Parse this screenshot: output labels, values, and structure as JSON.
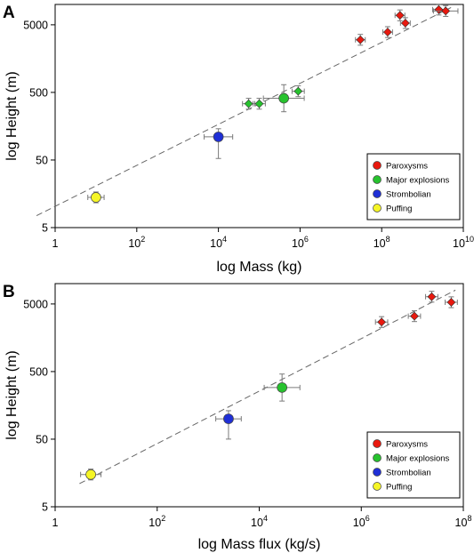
{
  "colors": {
    "paroxysms": "#e8190f",
    "major_explosions": "#27c22e",
    "strombolian": "#1f2fd6",
    "puffing": "#f5f526",
    "fit_line": "#666666",
    "error_bar": "#7a7a7a"
  },
  "chart_data": [
    {
      "panel": "A",
      "type": "scatter",
      "xlabel": "log Mass (kg)",
      "ylabel": "log Height (m)",
      "x_scale": "log10",
      "y_scale": "log10",
      "xlim": [
        1,
        10000000000
      ],
      "ylim": [
        5,
        10000
      ],
      "x_ticks": [
        {
          "value": 1,
          "base": "1",
          "exp": ""
        },
        {
          "value": 100,
          "base": "10",
          "exp": "2"
        },
        {
          "value": 10000,
          "base": "10",
          "exp": "4"
        },
        {
          "value": 1000000,
          "base": "10",
          "exp": "6"
        },
        {
          "value": 100000000,
          "base": "10",
          "exp": "8"
        },
        {
          "value": 10000000000,
          "base": "10",
          "exp": "10"
        }
      ],
      "y_ticks": [
        {
          "value": 5,
          "label": "5"
        },
        {
          "value": 50,
          "label": "50"
        },
        {
          "value": 500,
          "label": "500"
        },
        {
          "value": 5000,
          "label": "5000"
        }
      ],
      "fit_line": {
        "x": [
          0.35,
          5000000000
        ],
        "y": [
          7.5,
          9000
        ]
      },
      "legend_position": "bottom-right",
      "series": [
        {
          "name": "Paroxysms",
          "marker": "diamond",
          "color_key": "paroxysms",
          "points": [
            {
              "x": 30000000,
              "y": 3000,
              "xerr": [
                0.12,
                0.12
              ],
              "yerr": [
                0.08,
                0.08
              ]
            },
            {
              "x": 140000000,
              "y": 3900,
              "xerr": [
                0.12,
                0.12
              ],
              "yerr": [
                0.08,
                0.08
              ]
            },
            {
              "x": 280000000,
              "y": 6900,
              "xerr": [
                0.12,
                0.12
              ],
              "yerr": [
                0.08,
                0.08
              ]
            },
            {
              "x": 380000000,
              "y": 5300,
              "xerr": [
                0.12,
                0.12
              ],
              "yerr": [
                0.08,
                0.08
              ]
            },
            {
              "x": 2500000000,
              "y": 8400,
              "xerr": [
                0.15,
                0.15
              ],
              "yerr": [
                0.08,
                0.08
              ]
            },
            {
              "x": 3700000000,
              "y": 8000,
              "xerr": [
                0.3,
                0.3
              ],
              "yerr": [
                0.08,
                0.08
              ]
            }
          ]
        },
        {
          "name": "Major explosions",
          "marker": "diamond",
          "color_key": "major_explosions",
          "points": [
            {
              "x": 55000,
              "y": 340,
              "xerr": [
                0.15,
                0.15
              ],
              "yerr": [
                0.08,
                0.08
              ]
            },
            {
              "x": 100000,
              "y": 340,
              "xerr": [
                0.15,
                0.15
              ],
              "yerr": [
                0.08,
                0.08
              ]
            },
            {
              "x": 900000,
              "y": 520,
              "xerr": [
                0.15,
                0.15
              ],
              "yerr": [
                0.08,
                0.08
              ]
            }
          ]
        },
        {
          "name": "Major explosions",
          "marker": "circle",
          "color_key": "major_explosions",
          "points": [
            {
              "x": 400000,
              "y": 410,
              "xerr": [
                0.5,
                0.5
              ],
              "yerr": [
                0.2,
                0.2
              ]
            }
          ]
        },
        {
          "name": "Strombolian",
          "marker": "circle",
          "color_key": "strombolian",
          "points": [
            {
              "x": 10000,
              "y": 110,
              "xerr": [
                0.35,
                0.35
              ],
              "yerr": [
                0.32,
                0.12
              ]
            }
          ]
        },
        {
          "name": "Puffing",
          "marker": "circle",
          "color_key": "puffing",
          "points": [
            {
              "x": 10,
              "y": 14,
              "xerr": [
                0.2,
                0.2
              ],
              "yerr": [
                0.08,
                0.08
              ]
            }
          ]
        }
      ],
      "legend": [
        {
          "label": "Paroxysms",
          "color_key": "paroxysms"
        },
        {
          "label": "Major explosions",
          "color_key": "major_explosions"
        },
        {
          "label": "Strombolian",
          "color_key": "strombolian"
        },
        {
          "label": "Puffing",
          "color_key": "puffing"
        }
      ]
    },
    {
      "panel": "B",
      "type": "scatter",
      "xlabel": "log Mass flux (kg/s)",
      "ylabel": "log Height (m)",
      "x_scale": "log10",
      "y_scale": "log10",
      "xlim": [
        1,
        100000000
      ],
      "ylim": [
        5,
        10000
      ],
      "x_ticks": [
        {
          "value": 1,
          "base": "1",
          "exp": ""
        },
        {
          "value": 100,
          "base": "10",
          "exp": "2"
        },
        {
          "value": 10000,
          "base": "10",
          "exp": "4"
        },
        {
          "value": 1000000,
          "base": "10",
          "exp": "6"
        },
        {
          "value": 100000000,
          "base": "10",
          "exp": "8"
        }
      ],
      "y_ticks": [
        {
          "value": 5,
          "label": "5"
        },
        {
          "value": 50,
          "label": "50"
        },
        {
          "value": 500,
          "label": "500"
        },
        {
          "value": 5000,
          "label": "5000"
        }
      ],
      "fit_line": {
        "x": [
          3,
          70000000
        ],
        "y": [
          11,
          8000
        ]
      },
      "legend_position": "bottom-right",
      "series": [
        {
          "name": "Paroxysms",
          "marker": "diamond",
          "color_key": "paroxysms",
          "points": [
            {
              "x": 2500000,
              "y": 2700,
              "xerr": [
                0.12,
                0.12
              ],
              "yerr": [
                0.08,
                0.08
              ]
            },
            {
              "x": 11000000,
              "y": 3300,
              "xerr": [
                0.12,
                0.12
              ],
              "yerr": [
                0.08,
                0.08
              ]
            },
            {
              "x": 24000000,
              "y": 6400,
              "xerr": [
                0.12,
                0.12
              ],
              "yerr": [
                0.08,
                0.08
              ]
            },
            {
              "x": 58000000,
              "y": 5300,
              "xerr": [
                0.12,
                0.12
              ],
              "yerr": [
                0.08,
                0.08
              ]
            }
          ]
        },
        {
          "name": "Major explosions",
          "marker": "circle",
          "color_key": "major_explosions",
          "points": [
            {
              "x": 28000,
              "y": 290,
              "xerr": [
                0.35,
                0.35
              ],
              "yerr": [
                0.2,
                0.2
              ]
            }
          ]
        },
        {
          "name": "Strombolian",
          "marker": "circle",
          "color_key": "strombolian",
          "points": [
            {
              "x": 2500,
              "y": 100,
              "xerr": [
                0.25,
                0.25
              ],
              "yerr": [
                0.3,
                0.12
              ]
            }
          ]
        },
        {
          "name": "Puffing",
          "marker": "circle",
          "color_key": "puffing",
          "points": [
            {
              "x": 5,
              "y": 15,
              "xerr": [
                0.2,
                0.2
              ],
              "yerr": [
                0.08,
                0.08
              ]
            }
          ]
        }
      ],
      "legend": [
        {
          "label": "Paroxysms",
          "color_key": "paroxysms"
        },
        {
          "label": "Major explosions",
          "color_key": "major_explosions"
        },
        {
          "label": "Strombolian",
          "color_key": "strombolian"
        },
        {
          "label": "Puffing",
          "color_key": "puffing"
        }
      ]
    }
  ]
}
